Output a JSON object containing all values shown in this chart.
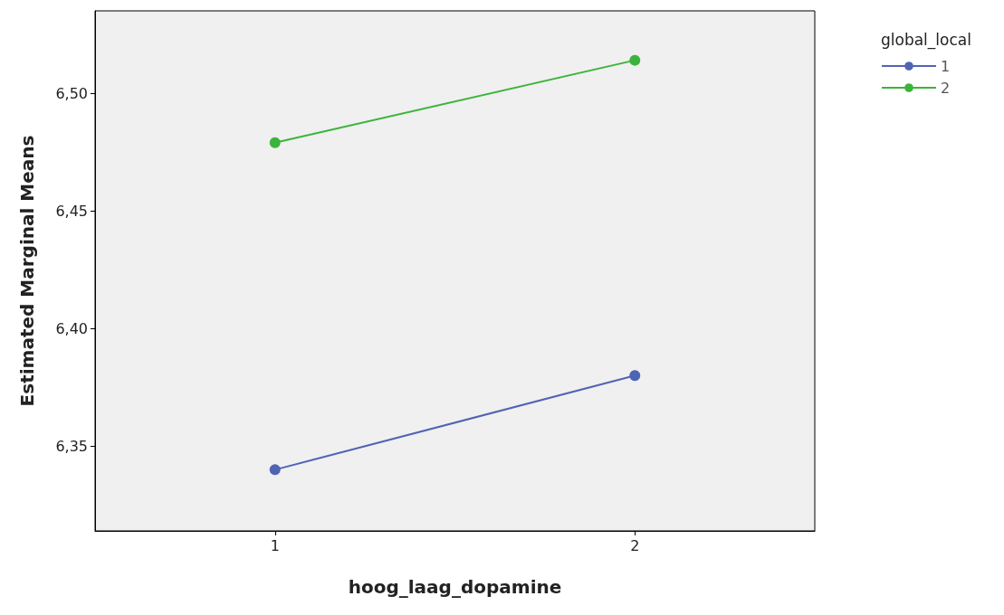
{
  "chart_data": {
    "type": "line",
    "xlabel": "hoog_laag_dopamine",
    "ylabel": "Estimated Marginal Means",
    "legend_title": "global_local",
    "categories": [
      "1",
      "2"
    ],
    "series": [
      {
        "name": "1",
        "color": "#5064b4",
        "values": [
          6.34,
          6.38
        ]
      },
      {
        "name": "2",
        "color": "#3cb43c",
        "values": [
          6.479,
          6.514
        ]
      }
    ],
    "ylim": [
      6.314,
      6.535
    ],
    "yticks": [
      {
        "value": 6.35,
        "label": "6,35"
      },
      {
        "value": 6.4,
        "label": "6,40"
      },
      {
        "value": 6.45,
        "label": "6,45"
      },
      {
        "value": 6.5,
        "label": "6,50"
      }
    ],
    "grid": false,
    "legend": "top right",
    "marker": "circle",
    "line_style": "solid"
  }
}
